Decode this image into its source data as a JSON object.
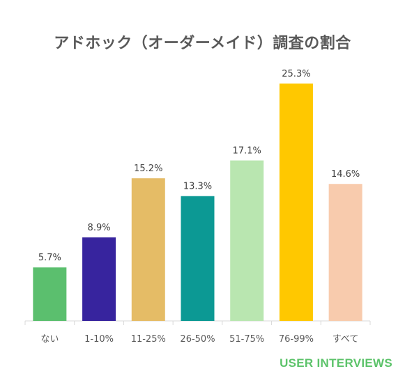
{
  "chart_data": {
    "type": "bar",
    "title": "アドホック（オーダーメイド）調査の割合",
    "categories": [
      "ない",
      "1-10%",
      "11-25%",
      "26-50%",
      "51-75%",
      "76-99%",
      "すべて"
    ],
    "values": [
      5.7,
      8.9,
      15.2,
      13.3,
      17.1,
      25.3,
      14.6
    ],
    "value_labels": [
      "5.7%",
      "8.9%",
      "15.2%",
      "13.3%",
      "17.1%",
      "25.3%",
      "14.6%"
    ],
    "colors": [
      "#5bbf6e",
      "#37249e",
      "#e5bc66",
      "#0c9994",
      "#b9e6b0",
      "#ffc800",
      "#f8cbad"
    ],
    "xlabel": "",
    "ylabel": "",
    "ylim": [
      0,
      25.3
    ],
    "grid": false,
    "legend": false
  },
  "brand": {
    "text": "USER INTERVIEWS",
    "color": "#5cc36a"
  }
}
